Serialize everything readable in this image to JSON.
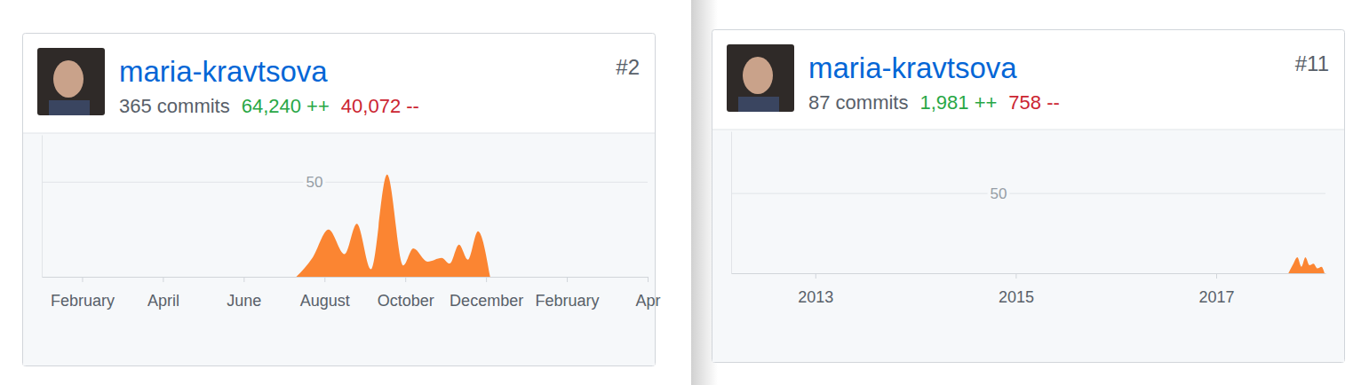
{
  "chart_data": [
    {
      "type": "area",
      "title": "maria-kravtsova",
      "annotations": [
        "#2",
        "365 commits",
        "64,240 ++",
        "40,072 --"
      ],
      "x": [
        6.3,
        6.7,
        7.1,
        7.5,
        7.8,
        8.15,
        8.55,
        8.95,
        9.2,
        9.55,
        9.9,
        10.1,
        10.33,
        10.55,
        10.8,
        11.1
      ],
      "values": [
        0,
        10,
        25,
        12,
        28,
        4,
        54,
        6,
        15,
        8,
        10,
        7,
        17,
        9,
        24,
        0
      ],
      "color": "#fb8532",
      "xlim": [
        0,
        15
      ],
      "xticks": [
        {
          "value": 1,
          "label": "February"
        },
        {
          "value": 3,
          "label": "April"
        },
        {
          "value": 5,
          "label": "June"
        },
        {
          "value": 7,
          "label": "August"
        },
        {
          "value": 9,
          "label": "October"
        },
        {
          "value": 11,
          "label": "December"
        },
        {
          "value": 13,
          "label": "February"
        },
        {
          "value": 15,
          "label": "Apr"
        }
      ],
      "ylim": [
        0,
        75
      ],
      "yticks": [
        50
      ],
      "grid": true
    },
    {
      "type": "area",
      "title": "maria-kravtsova",
      "annotations": [
        "#11",
        "87 commits",
        "1,981 ++",
        "758 --"
      ],
      "x": [
        2017.72,
        2017.77,
        2017.81,
        2017.85,
        2017.89,
        2017.93,
        2017.97,
        2018.01,
        2018.05,
        2018.08
      ],
      "values": [
        0,
        6,
        10,
        4,
        10,
        5,
        6,
        3,
        4,
        0
      ],
      "color": "#fb8532",
      "xlim": [
        2012.16,
        2018.09
      ],
      "xticks": [
        2013,
        2015,
        2017
      ],
      "ylim": [
        0,
        89
      ],
      "yticks": [
        50
      ],
      "grid": true
    }
  ]
}
